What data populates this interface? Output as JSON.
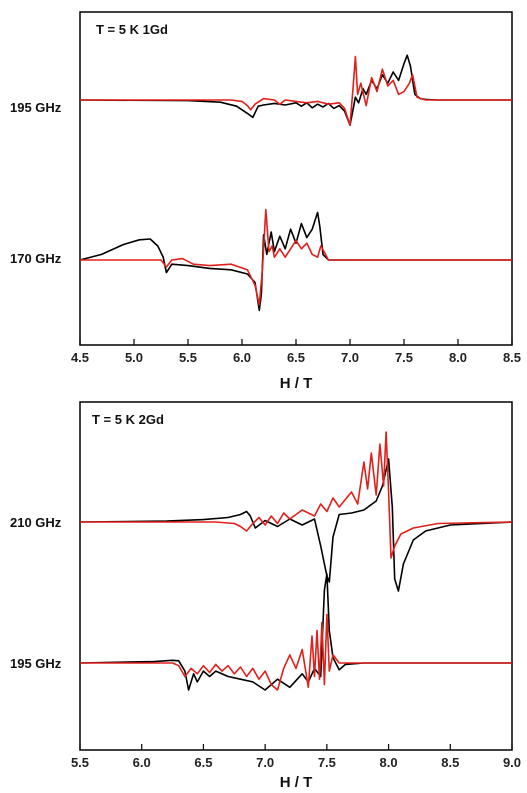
{
  "chart_data": [
    {
      "type": "line",
      "title": "T = 5 K  1Gd",
      "xlabel": "H / T",
      "xlim": [
        4.5,
        8.5
      ],
      "x_ticks": [
        "4.5",
        "5.0",
        "5.5",
        "6.0",
        "6.5",
        "7.0",
        "7.5",
        "8.0",
        "8.5"
      ],
      "series_colors": [
        "#000000",
        "#e0201b"
      ],
      "traces": [
        {
          "label": "195 GHz",
          "series": [
            {
              "color_key": "black",
              "x": [
                4.5,
                5.5,
                5.8,
                5.95,
                6.05,
                6.1,
                6.15,
                6.2,
                6.3,
                6.4,
                6.5,
                6.55,
                6.6,
                6.65,
                6.7,
                6.75,
                6.8,
                6.85,
                6.9,
                6.95,
                7.0,
                7.02,
                7.05,
                7.08,
                7.12,
                7.15,
                7.2,
                7.25,
                7.3,
                7.35,
                7.4,
                7.45,
                7.5,
                7.53,
                7.56,
                7.6,
                7.65,
                7.7,
                7.8,
                8.5
              ],
              "y": [
                0,
                -0.02,
                -0.08,
                -0.22,
                -0.48,
                -0.62,
                -0.22,
                -0.18,
                -0.12,
                -0.18,
                -0.1,
                -0.22,
                -0.1,
                -0.28,
                -0.15,
                -0.25,
                -0.12,
                -0.3,
                -0.2,
                -0.4,
                -0.9,
                -0.5,
                0.1,
                -0.1,
                0.4,
                0.2,
                0.7,
                0.4,
                0.9,
                0.6,
                1.0,
                0.7,
                1.3,
                1.6,
                1.2,
                0.2,
                0.05,
                0.02,
                0,
                0
              ]
            },
            {
              "color_key": "red",
              "x": [
                4.5,
                5.9,
                6.0,
                6.05,
                6.08,
                6.12,
                6.2,
                6.3,
                6.35,
                6.4,
                6.5,
                6.6,
                6.7,
                6.8,
                6.9,
                6.95,
                7.0,
                7.03,
                7.05,
                7.07,
                7.1,
                7.15,
                7.2,
                7.25,
                7.3,
                7.35,
                7.4,
                7.45,
                7.5,
                7.55,
                7.58,
                7.62,
                7.7,
                8.5
              ],
              "y": [
                0,
                0,
                -0.05,
                -0.2,
                -0.35,
                -0.15,
                0.05,
                0,
                -0.15,
                0,
                -0.05,
                -0.1,
                -0.05,
                -0.15,
                -0.1,
                -0.3,
                -0.9,
                0.5,
                1.55,
                0.2,
                0.6,
                -0.2,
                0.8,
                0.3,
                1.1,
                0.5,
                0.7,
                0.2,
                0.3,
                0.6,
                0.9,
                0.1,
                0,
                0
              ]
            }
          ]
        },
        {
          "label": "170 GHz",
          "series": [
            {
              "color_key": "black",
              "x": [
                4.5,
                4.7,
                4.9,
                5.05,
                5.15,
                5.22,
                5.27,
                5.3,
                5.35,
                5.5,
                5.7,
                5.9,
                6.05,
                6.12,
                6.16,
                6.18,
                6.2,
                6.23,
                6.27,
                6.3,
                6.35,
                6.4,
                6.45,
                6.5,
                6.55,
                6.6,
                6.65,
                6.7,
                6.72,
                6.75,
                6.8,
                7.0,
                8.5
              ],
              "y": [
                0,
                0.2,
                0.55,
                0.72,
                0.75,
                0.5,
                0.1,
                -0.45,
                -0.15,
                -0.2,
                -0.3,
                -0.35,
                -0.5,
                -0.8,
                -1.8,
                -1.2,
                0.9,
                0.2,
                1.0,
                0.3,
                0.85,
                0.4,
                1.1,
                0.6,
                1.3,
                0.8,
                1.1,
                1.7,
                1.2,
                0.2,
                0,
                0,
                0
              ]
            },
            {
              "color_key": "red",
              "x": [
                4.5,
                5.25,
                5.3,
                5.35,
                5.45,
                5.55,
                5.7,
                5.9,
                6.05,
                6.12,
                6.16,
                6.19,
                6.22,
                6.25,
                6.28,
                6.3,
                6.35,
                6.4,
                6.5,
                6.55,
                6.6,
                6.65,
                6.7,
                6.73,
                6.76,
                6.8,
                7.0,
                8.5
              ],
              "y": [
                0,
                0,
                -0.25,
                0,
                0.05,
                -0.15,
                -0.2,
                -0.15,
                -0.35,
                -0.9,
                -1.6,
                -0.3,
                1.8,
                0.3,
                0.5,
                0.1,
                0.4,
                0.1,
                0.7,
                0.4,
                0.6,
                0.2,
                0.1,
                0.5,
                0.3,
                0,
                0,
                0
              ]
            }
          ]
        }
      ]
    },
    {
      "type": "line",
      "title": "T = 5 K  2Gd",
      "xlabel": "H / T",
      "xlim": [
        5.5,
        9.0
      ],
      "x_ticks": [
        "5.5",
        "6.0",
        "6.5",
        "7.0",
        "7.5",
        "8.0",
        "8.5",
        "9.0"
      ],
      "series_colors": [
        "#000000",
        "#e0201b"
      ],
      "traces": [
        {
          "label": "210 GHz",
          "series": [
            {
              "color_key": "black",
              "x": [
                5.5,
                6.2,
                6.5,
                6.7,
                6.8,
                6.85,
                6.88,
                6.92,
                7.0,
                7.1,
                7.2,
                7.3,
                7.4,
                7.45,
                7.5,
                7.52,
                7.55,
                7.6,
                7.7,
                7.8,
                7.9,
                7.95,
                8.0,
                8.03,
                8.05,
                8.08,
                8.12,
                8.2,
                8.3,
                8.5,
                9.0
              ],
              "y": [
                0,
                0.03,
                0.08,
                0.15,
                0.25,
                0.35,
                0.2,
                -0.2,
                0.05,
                -0.15,
                0.1,
                -0.1,
                0.1,
                -0.8,
                -1.8,
                -2.0,
                -0.5,
                0.25,
                0.3,
                0.4,
                0.7,
                1.2,
                2.1,
                0.5,
                -1.9,
                -2.3,
                -1.4,
                -0.6,
                -0.3,
                -0.1,
                0
              ]
            },
            {
              "color_key": "red",
              "x": [
                5.5,
                6.6,
                6.75,
                6.8,
                6.85,
                6.9,
                6.95,
                7.0,
                7.05,
                7.1,
                7.15,
                7.2,
                7.3,
                7.4,
                7.45,
                7.5,
                7.55,
                7.6,
                7.7,
                7.75,
                7.8,
                7.83,
                7.86,
                7.9,
                7.93,
                7.96,
                7.98,
                8.0,
                8.02,
                8.05,
                8.1,
                8.2,
                8.4,
                9.0
              ],
              "y": [
                0,
                0,
                -0.05,
                -0.15,
                -0.3,
                -0.05,
                0.15,
                -0.1,
                0.2,
                -0.05,
                0.3,
                0.1,
                0.4,
                0.2,
                0.6,
                0.35,
                0.8,
                0.5,
                1.0,
                0.6,
                2.0,
                1.1,
                2.3,
                0.9,
                2.6,
                1.2,
                3.0,
                1.0,
                -1.2,
                -0.8,
                -0.4,
                -0.2,
                -0.05,
                0
              ]
            }
          ]
        },
        {
          "label": "195 GHz",
          "series": [
            {
              "color_key": "black",
              "x": [
                5.5,
                6.1,
                6.25,
                6.3,
                6.35,
                6.38,
                6.42,
                6.45,
                6.5,
                6.55,
                6.6,
                6.7,
                6.8,
                6.9,
                7.0,
                7.1,
                7.2,
                7.3,
                7.35,
                7.4,
                7.45,
                7.48,
                7.5,
                7.52,
                7.55,
                7.6,
                7.65,
                7.8,
                9.0
              ],
              "y": [
                0,
                0.05,
                0.1,
                0.08,
                -0.3,
                -1.0,
                -0.4,
                -0.7,
                -0.3,
                -0.5,
                -0.3,
                -0.5,
                -0.6,
                -0.7,
                -1.0,
                -0.6,
                -0.9,
                -0.4,
                -0.7,
                -0.2,
                -0.5,
                2.7,
                3.3,
                1.2,
                0.2,
                -0.25,
                -0.05,
                0,
                0
              ]
            },
            {
              "color_key": "red",
              "x": [
                5.5,
                6.25,
                6.3,
                6.35,
                6.4,
                6.45,
                6.5,
                6.55,
                6.6,
                6.65,
                6.7,
                6.75,
                6.8,
                6.85,
                6.9,
                6.95,
                7.0,
                7.05,
                7.1,
                7.15,
                7.2,
                7.25,
                7.3,
                7.35,
                7.38,
                7.4,
                7.42,
                7.44,
                7.46,
                7.48,
                7.5,
                7.52,
                7.55,
                7.6,
                9.0
              ],
              "y": [
                0,
                0,
                -0.1,
                -0.5,
                -0.2,
                -0.4,
                -0.1,
                -0.35,
                -0.05,
                -0.3,
                -0.1,
                -0.4,
                -0.15,
                -0.5,
                -0.2,
                -0.6,
                -0.3,
                -0.8,
                -1.0,
                -0.2,
                0.3,
                -0.2,
                0.5,
                -0.9,
                1.0,
                -0.5,
                1.2,
                -0.6,
                1.5,
                -0.8,
                1.8,
                -0.3,
                0.3,
                0,
                0
              ]
            }
          ]
        }
      ]
    }
  ]
}
